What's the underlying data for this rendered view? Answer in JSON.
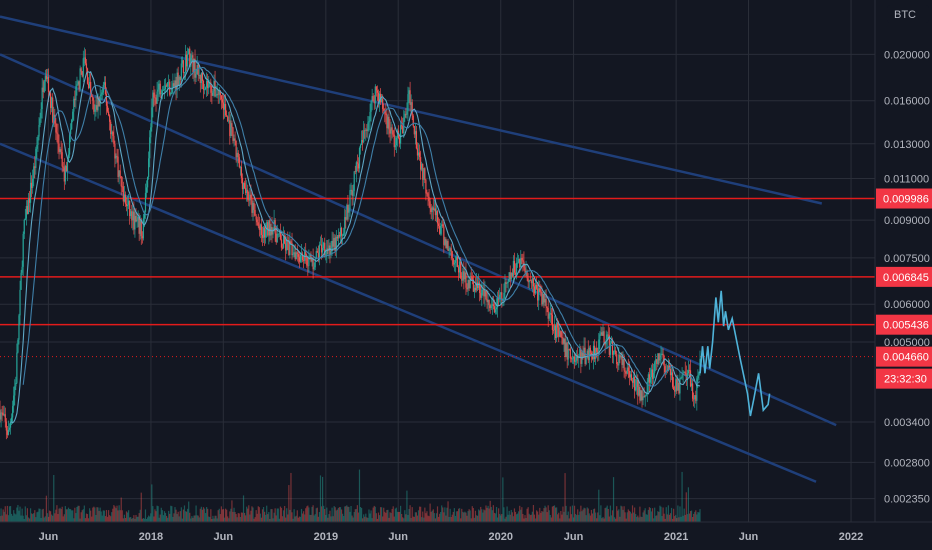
{
  "symbol_badge": "BTC",
  "countdown": "23:32:30",
  "colors": {
    "background": "#131722",
    "grid": "#2a2e39",
    "price_tag": "#f23645",
    "level_line": "#e31b1b",
    "channel": "#1f3f7a",
    "projection": "#4fb3d9",
    "ma": "#5fa8c6",
    "candle_up": "#26a69a",
    "candle_down": "#ef5350"
  },
  "chart_data": {
    "type": "candlestick",
    "y_scale": "log",
    "ylim": [
      0.0021,
      0.026
    ],
    "xlim": [
      "2017-02-20",
      "2022-02-20"
    ],
    "y_tick_labels": [
      "0.020000",
      "0.016000",
      "0.013000",
      "0.011000",
      "0.009000",
      "0.007500",
      "0.006000",
      "0.005000",
      "0.003400",
      "0.002800",
      "0.002350"
    ],
    "y_ticks": [
      0.02,
      0.016,
      0.013,
      0.011,
      0.009,
      0.0075,
      0.006,
      0.005,
      0.0034,
      0.0028,
      0.00235
    ],
    "x_tick_labels": [
      "Jun",
      "2018",
      "Jun",
      "2019",
      "Jun",
      "2020",
      "Jun",
      "2021",
      "Jun",
      "2022"
    ],
    "x_ticks": [
      "2017-06-01",
      "2018-01-01",
      "2018-06-01",
      "2019-01-01",
      "2019-06-01",
      "2020-01-01",
      "2020-06-01",
      "2021-01-01",
      "2021-06-01",
      "2022-01-01"
    ],
    "horizontal_levels": [
      {
        "value": 0.009986,
        "label": "0.009986"
      },
      {
        "value": 0.006845,
        "label": "0.006845"
      },
      {
        "value": 0.005436,
        "label": "0.005436"
      }
    ],
    "current_price": {
      "value": 0.00466,
      "label": "0.004660"
    },
    "channel_lines": [
      {
        "from": [
          "2017-02-20",
          0.024
        ],
        "to": [
          "2021-11-01",
          0.00975
        ]
      },
      {
        "from": [
          "2017-02-20",
          0.02
        ],
        "to": [
          "2021-12-01",
          0.00335
        ]
      },
      {
        "from": [
          "2017-02-20",
          0.013
        ],
        "to": [
          "2021-10-20",
          0.00255
        ]
      }
    ],
    "price_path": [
      [
        "2017-02-20",
        0.0036
      ],
      [
        "2017-03-10",
        0.0032
      ],
      [
        "2017-03-25",
        0.0042
      ],
      [
        "2017-04-10",
        0.0085
      ],
      [
        "2017-05-05",
        0.012
      ],
      [
        "2017-05-25",
        0.019
      ],
      [
        "2017-06-15",
        0.014
      ],
      [
        "2017-07-05",
        0.011
      ],
      [
        "2017-07-25",
        0.016
      ],
      [
        "2017-08-15",
        0.0195
      ],
      [
        "2017-09-05",
        0.015
      ],
      [
        "2017-09-25",
        0.017
      ],
      [
        "2017-10-15",
        0.013
      ],
      [
        "2017-11-05",
        0.01
      ],
      [
        "2017-11-25",
        0.009
      ],
      [
        "2017-12-15",
        0.0085
      ],
      [
        "2018-01-05",
        0.016
      ],
      [
        "2018-01-25",
        0.0175
      ],
      [
        "2018-02-15",
        0.017
      ],
      [
        "2018-03-05",
        0.0185
      ],
      [
        "2018-03-20",
        0.02
      ],
      [
        "2018-04-10",
        0.018
      ],
      [
        "2018-05-01",
        0.0172
      ],
      [
        "2018-05-25",
        0.0165
      ],
      [
        "2018-06-15",
        0.014
      ],
      [
        "2018-07-10",
        0.011
      ],
      [
        "2018-08-01",
        0.0095
      ],
      [
        "2018-08-20",
        0.0083
      ],
      [
        "2018-09-10",
        0.0088
      ],
      [
        "2018-10-01",
        0.008
      ],
      [
        "2018-10-25",
        0.0078
      ],
      [
        "2018-11-15",
        0.0076
      ],
      [
        "2018-12-05",
        0.0073
      ],
      [
        "2018-12-25",
        0.008
      ],
      [
        "2019-01-15",
        0.0078
      ],
      [
        "2019-02-05",
        0.0085
      ],
      [
        "2019-03-01",
        0.011
      ],
      [
        "2019-03-25",
        0.014
      ],
      [
        "2019-04-15",
        0.017
      ],
      [
        "2019-05-05",
        0.015
      ],
      [
        "2019-05-25",
        0.013
      ],
      [
        "2019-06-10",
        0.014
      ],
      [
        "2019-06-25",
        0.0165
      ],
      [
        "2019-07-10",
        0.013
      ],
      [
        "2019-07-25",
        0.011
      ],
      [
        "2019-08-15",
        0.0093
      ],
      [
        "2019-09-05",
        0.0082
      ],
      [
        "2019-09-25",
        0.0075
      ],
      [
        "2019-10-15",
        0.0068
      ],
      [
        "2019-11-05",
        0.0066
      ],
      [
        "2019-11-25",
        0.0063
      ],
      [
        "2019-12-15",
        0.0058
      ],
      [
        "2020-01-05",
        0.0062
      ],
      [
        "2020-01-25",
        0.007
      ],
      [
        "2020-02-10",
        0.0075
      ],
      [
        "2020-02-25",
        0.007
      ],
      [
        "2020-03-15",
        0.0064
      ],
      [
        "2020-04-05",
        0.006
      ],
      [
        "2020-04-25",
        0.0053
      ],
      [
        "2020-05-15",
        0.0048
      ],
      [
        "2020-06-05",
        0.0046
      ],
      [
        "2020-06-25",
        0.0047
      ],
      [
        "2020-07-15",
        0.0048
      ],
      [
        "2020-08-01",
        0.0052
      ],
      [
        "2020-08-20",
        0.0048
      ],
      [
        "2020-09-10",
        0.0045
      ],
      [
        "2020-10-01",
        0.0041
      ],
      [
        "2020-10-20",
        0.0039
      ],
      [
        "2020-11-10",
        0.0042
      ],
      [
        "2020-11-30",
        0.0047
      ],
      [
        "2020-12-15",
        0.0043
      ],
      [
        "2021-01-05",
        0.004
      ],
      [
        "2021-01-25",
        0.0043
      ],
      [
        "2021-02-10",
        0.0038
      ],
      [
        "2021-02-20",
        0.00466
      ]
    ],
    "projection_path": [
      [
        "2021-02-20",
        0.0043
      ],
      [
        "2021-02-25",
        0.0049
      ],
      [
        "2021-03-02",
        0.0043
      ],
      [
        "2021-03-08",
        0.0049
      ],
      [
        "2021-03-12",
        0.0044
      ],
      [
        "2021-03-18",
        0.005
      ],
      [
        "2021-03-25",
        0.0062
      ],
      [
        "2021-03-30",
        0.0055
      ],
      [
        "2021-04-05",
        0.0064
      ],
      [
        "2021-04-10",
        0.0054
      ],
      [
        "2021-04-14",
        0.0058
      ],
      [
        "2021-04-20",
        0.0053
      ],
      [
        "2021-04-28",
        0.0056
      ],
      [
        "2021-05-15",
        0.0046
      ],
      [
        "2021-05-30",
        0.0039
      ],
      [
        "2021-06-05",
        0.0035
      ],
      [
        "2021-06-12",
        0.0038
      ],
      [
        "2021-06-22",
        0.0043
      ],
      [
        "2021-07-02",
        0.0036
      ],
      [
        "2021-07-12",
        0.0037
      ],
      [
        "2021-07-15",
        0.0039
      ]
    ],
    "volume_notes": "volume histogram along bottom; notable spikes around 2017-12, 2019-06, 2020-02 and 2021-02"
  }
}
